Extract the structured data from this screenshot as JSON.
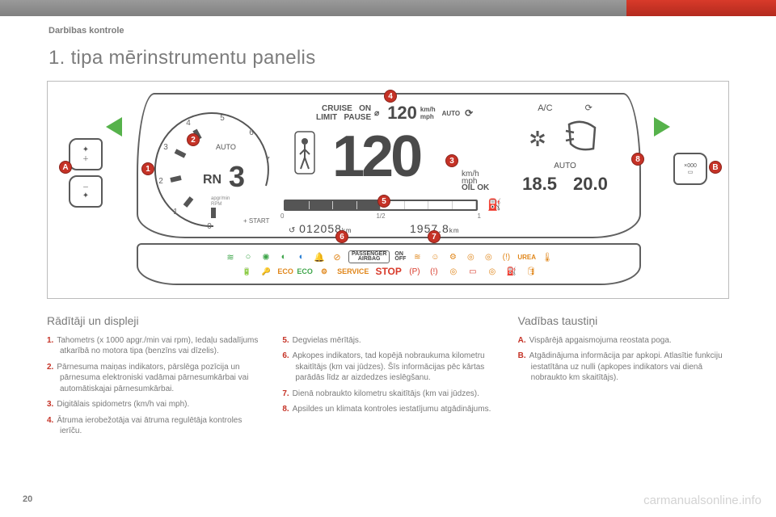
{
  "page": {
    "header_label": "Darbības kontrole",
    "title": "1. tipa mērinstrumentu panelis",
    "page_number": "20",
    "watermark": "carmanualsonline.info"
  },
  "colors": {
    "topbar_gray": "#8a8a8a",
    "topbar_red": "#cd3628",
    "marker_red": "#c53226",
    "turn_green": "#56b24b",
    "text_gray": "#7c7c7c",
    "beam_blue": "#2a7fd4",
    "beam_green": "#3fa64b",
    "amber": "#e0861a",
    "stop_red": "#d83a2a",
    "belt_red": "#d83a2a"
  },
  "cluster": {
    "tachometer": {
      "ticks": [
        "0",
        "1",
        "2",
        "3",
        "4",
        "5",
        "6",
        "7"
      ],
      "auto_label": "AUTO",
      "gear_mode": "RN",
      "gear_num": "3",
      "rpm_unit": "apgr/min\nRPM",
      "stop_start": "+ START"
    },
    "cruise": {
      "labels": "CRUISE   ON\nLIMIT   PAUSE",
      "value": "120",
      "unit": "km/h\nmph",
      "auto": "AUTO"
    },
    "big_speed": "120",
    "speed_unit": "km/h\nmph",
    "oil_ok": "OIL  OK",
    "fuel": {
      "segments_total": 8,
      "segments_filled": 4,
      "left_label": "0",
      "mid_label": "1/2",
      "right_label": "1"
    },
    "odometer": "012058",
    "odometer_unit": "km",
    "trip": "1957.8",
    "trip_unit": "km",
    "ac": {
      "ac_label": "A/C",
      "auto_label": "AUTO",
      "temp_left": "18.5",
      "temp_right": "20.0"
    },
    "markers_num": [
      "1",
      "2",
      "3",
      "4",
      "5",
      "6",
      "7",
      "8"
    ],
    "markers_letter": [
      "A",
      "B"
    ],
    "side_button_right_label": "×000"
  },
  "warning_bar": {
    "passenger_airbag_top": "PASSENGER",
    "passenger_airbag_bot": "AIRBAG",
    "airbag_on": "ON",
    "airbag_off": "OFF",
    "service": "SERVICE",
    "stop": "STOP",
    "urea": "UREA",
    "icons": [
      {
        "name": "fog-rear-icon",
        "glyph": "≋",
        "color": "#3fa64b"
      },
      {
        "name": "sidelight-icon",
        "glyph": "○",
        "color": "#3fa64b"
      },
      {
        "name": "fog-front-icon",
        "glyph": "✺",
        "color": "#3fa64b"
      },
      {
        "name": "low-beam-icon",
        "glyph": "◐",
        "color": "#3fa64b"
      },
      {
        "name": "high-beam-icon",
        "glyph": "◐",
        "color": "#2a7fd4"
      },
      {
        "name": "seatbelt-icon",
        "glyph": "🧍",
        "color": "#d83a2a"
      },
      {
        "name": "airbag-off-icon",
        "glyph": "⊘",
        "color": "#e0861a"
      },
      {
        "name": "lane-assist-icon",
        "glyph": "≋",
        "color": "#e0861a"
      },
      {
        "name": "airbag-icon",
        "glyph": "☺",
        "color": "#e0861a"
      },
      {
        "name": "engine-icon",
        "glyph": "⚙",
        "color": "#e0861a"
      },
      {
        "name": "abs-icon",
        "glyph": "◎",
        "color": "#e0861a"
      },
      {
        "name": "esp-icon",
        "glyph": "◎",
        "color": "#e0861a"
      },
      {
        "name": "tpms-icon",
        "glyph": "(!)",
        "color": "#e0861a"
      },
      {
        "name": "coolant-icon",
        "glyph": "🌡",
        "color": "#e0861a"
      }
    ],
    "icons2": [
      {
        "name": "battery-icon",
        "glyph": "🔋",
        "color": "#d83a2a"
      },
      {
        "name": "immobilizer-icon",
        "glyph": "🔑",
        "color": "#e0861a"
      },
      {
        "name": "eco-off-icon",
        "glyph": "ECO",
        "color": "#e0861a"
      },
      {
        "name": "eco-on-icon",
        "glyph": "ECO",
        "color": "#3fa64b"
      },
      {
        "name": "check-engine-icon",
        "glyph": "⚙",
        "color": "#e0861a"
      },
      {
        "name": "parking-brake-red-icon",
        "glyph": "(P)",
        "color": "#d83a2a"
      },
      {
        "name": "brake-warning-icon",
        "glyph": "(!)",
        "color": "#d83a2a"
      },
      {
        "name": "brake-pad-icon",
        "glyph": "◎",
        "color": "#e0861a"
      },
      {
        "name": "door-open-icon",
        "glyph": "▭",
        "color": "#d83a2a"
      },
      {
        "name": "esp-off-icon",
        "glyph": "◎",
        "color": "#e0861a"
      },
      {
        "name": "diesel-filter-icon",
        "glyph": "⛽",
        "color": "#e0861a"
      },
      {
        "name": "oil-can-icon",
        "glyph": "🛢",
        "color": "#e0861a"
      }
    ]
  },
  "columns": {
    "left": {
      "heading": "Rādītāji un displeji",
      "items": [
        {
          "n": "1.",
          "text": "Tahometrs (x 1000 apgr./min vai rpm), Iedaļu sadalījums atkarībā no motora tipa (benzīns vai dīzelis)."
        },
        {
          "n": "2.",
          "text": "Pārnesuma maiņas indikators, pārslēga pozīcija un pārnesuma elektroniski vadāmai pārnesumkārbai vai automātiskajai pārnesumkārbai."
        },
        {
          "n": "3.",
          "text": "Digitālais spidometrs (km/h vai mph)."
        },
        {
          "n": "4.",
          "text": "Ātruma ierobežotāja vai ātruma regulētāja kontroles ierīču."
        }
      ]
    },
    "mid": {
      "items": [
        {
          "n": "5.",
          "text": "Degvielas mērītājs."
        },
        {
          "n": "6.",
          "text": "Apkopes indikators, tad kopējā nobraukuma kilometru skaitītājs (km vai jūdzes). Šīs informācijas pēc kārtas parādās līdz ar aizdedzes ieslēgšanu."
        },
        {
          "n": "7.",
          "text": "Dienā nobraukto kilometru skaitītājs (km vai jūdzes)."
        },
        {
          "n": "8.",
          "text": "Apsildes un klimata kontroles iestatījumu atgādinājums."
        }
      ]
    },
    "right": {
      "heading": "Vadības taustiņi",
      "items": [
        {
          "n": "A.",
          "text": "Vispārējā apgaismojuma reostata poga."
        },
        {
          "n": "B.",
          "text": "Atgādinājuma informācija par apkopi. Atlasītie funkciju iestatītāna uz nulli (apkopes indikators vai dienā nobraukto km skaitītājs)."
        }
      ]
    }
  }
}
